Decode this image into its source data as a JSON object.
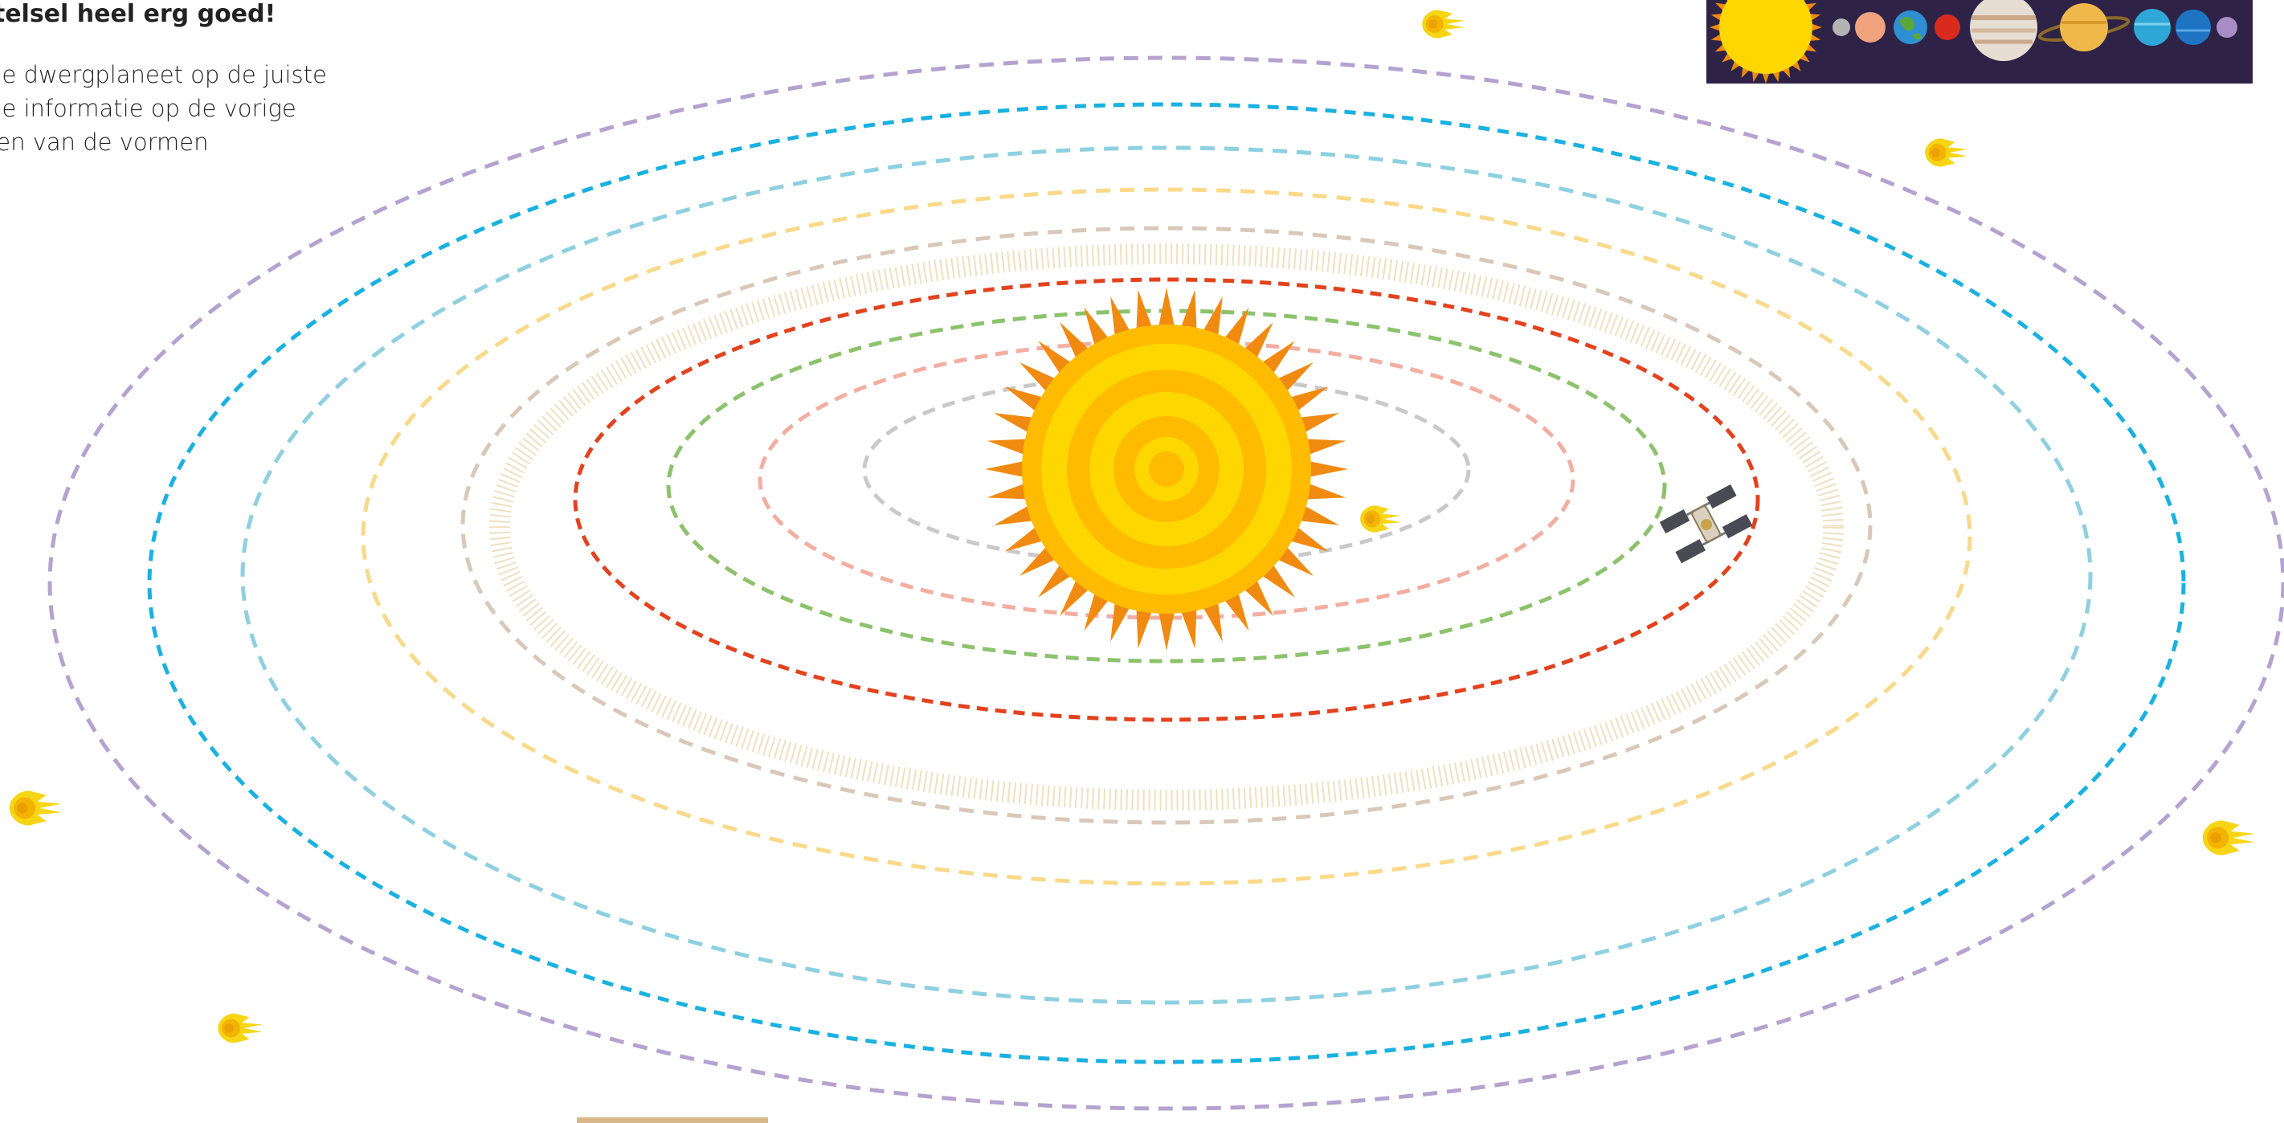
{
  "instructions": {
    "heading": "stelsel heel erg goed!",
    "lines": [
      "de dwergplaneet op de juiste",
      "de informatie op de vorige",
      "ren van de vormen"
    ]
  },
  "legend": {
    "planets": [
      "sun",
      "mercury",
      "venus",
      "earth",
      "mars",
      "jupiter",
      "saturn",
      "uranus",
      "neptune",
      "pluto"
    ]
  },
  "orbits": [
    {
      "name": "mercury",
      "color": "#c9c9c9"
    },
    {
      "name": "venus",
      "color": "#f2aea0"
    },
    {
      "name": "earth",
      "color": "#8dc26d"
    },
    {
      "name": "mars",
      "color": "#e2431f"
    },
    {
      "name": "asteroid-belt",
      "color": "#e8d3a5"
    },
    {
      "name": "jupiter",
      "color": "#d9c8b8"
    },
    {
      "name": "saturn",
      "color": "#f9d98a"
    },
    {
      "name": "uranus",
      "color": "#8fd0e0"
    },
    {
      "name": "neptune",
      "color": "#1ab1e1"
    },
    {
      "name": "pluto",
      "color": "#b4a2cf"
    }
  ],
  "colors": {
    "sun_outer": "#f08a10",
    "sun_ring_light": "#ffd700",
    "sun_ring_dark": "#ffbb00",
    "comet": "#f6d514",
    "legend_bg": "#2e2347"
  }
}
